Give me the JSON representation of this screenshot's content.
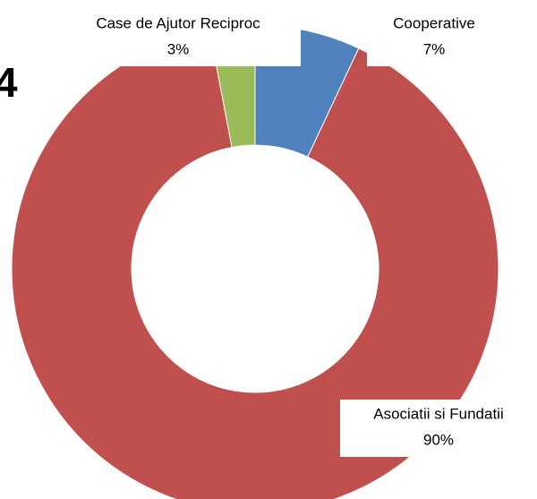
{
  "chart_data": {
    "type": "donut",
    "title": "4",
    "categories": [
      "Cooperative",
      "Asociatii si Fundatii",
      "Case de Ajutor Reciproc"
    ],
    "values": [
      7,
      90,
      3
    ],
    "value_labels": [
      "7%",
      "90%",
      "3%"
    ],
    "colors": [
      "#4f81bd",
      "#c0504d",
      "#9bbb59"
    ]
  }
}
